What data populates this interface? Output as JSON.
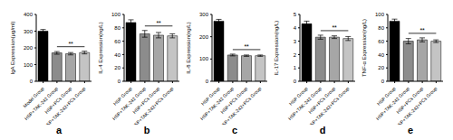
{
  "chart_data": [
    {
      "type": "bar",
      "panel": "a",
      "y_label": "IgA Expression(μg/ml)",
      "categories": [
        "Model Group",
        "HSP+TAK-242 Group",
        "HSP+PCs Group",
        "HSP+TAK-242+PCs Group"
      ],
      "values": [
        300,
        170,
        165,
        172
      ],
      "errors": [
        10,
        8,
        7,
        8
      ],
      "colors": [
        "#000000",
        "#8c8c8c",
        "#a6a6a6",
        "#c4c4c4"
      ],
      "ylim": [
        0,
        400
      ],
      "yticks": [
        0,
        100,
        200,
        300,
        400
      ],
      "annotation": "**"
    },
    {
      "type": "bar",
      "panel": "b",
      "y_label": "IL-4 Expression(ng/L)",
      "categories": [
        "HSP Group",
        "HSP+TAK-242 Group",
        "HSP+PCs Group",
        "HSP+TAK-242+PCs Group"
      ],
      "values": [
        88,
        71,
        69,
        68
      ],
      "errors": [
        4,
        5,
        4,
        3
      ],
      "colors": [
        "#000000",
        "#8c8c8c",
        "#a6a6a6",
        "#c4c4c4"
      ],
      "ylim": [
        0,
        100
      ],
      "yticks": [
        0,
        20,
        40,
        60,
        80,
        100
      ],
      "annotation": "**"
    },
    {
      "type": "bar",
      "panel": "c",
      "y_label": "IL-8 Expression(ng/L)",
      "categories": [
        "HSP Group",
        "HSP+TAK-242 Group",
        "HSP+PCs Group",
        "HSP+TAK-242+PCs Group"
      ],
      "values": [
        270,
        118,
        115,
        115
      ],
      "errors": [
        8,
        4,
        3,
        3
      ],
      "colors": [
        "#000000",
        "#8c8c8c",
        "#a6a6a6",
        "#c4c4c4"
      ],
      "ylim": [
        0,
        300
      ],
      "yticks": [
        0,
        100,
        200,
        300
      ],
      "annotation": "**"
    },
    {
      "type": "bar",
      "panel": "d",
      "y_label": "IL-17 Expression(ng/L)",
      "categories": [
        "HSP Group",
        "HSP+TAK-242 Group",
        "HSP+PCs Group",
        "HSP+TAK-242+PCs Group"
      ],
      "values": [
        4.3,
        3.3,
        3.3,
        3.2
      ],
      "errors": [
        0.2,
        0.15,
        0.1,
        0.15
      ],
      "colors": [
        "#000000",
        "#8c8c8c",
        "#a6a6a6",
        "#c4c4c4"
      ],
      "ylim": [
        0,
        5
      ],
      "yticks": [
        0,
        1,
        2,
        3,
        4,
        5
      ],
      "annotation": "**"
    },
    {
      "type": "bar",
      "panel": "e",
      "y_label": "TNF-α Expression(ng/L)",
      "categories": [
        "HSP Group",
        "HSP+TAK-242 Group",
        "HSP+PCs Group",
        "HSP+TAK-242+PCs Group"
      ],
      "values": [
        90,
        60,
        62,
        60
      ],
      "errors": [
        3,
        4,
        3,
        2
      ],
      "colors": [
        "#000000",
        "#8c8c8c",
        "#a6a6a6",
        "#c4c4c4"
      ],
      "ylim": [
        0,
        100
      ],
      "yticks": [
        0,
        20,
        40,
        60,
        80,
        100
      ],
      "annotation": "**"
    }
  ]
}
